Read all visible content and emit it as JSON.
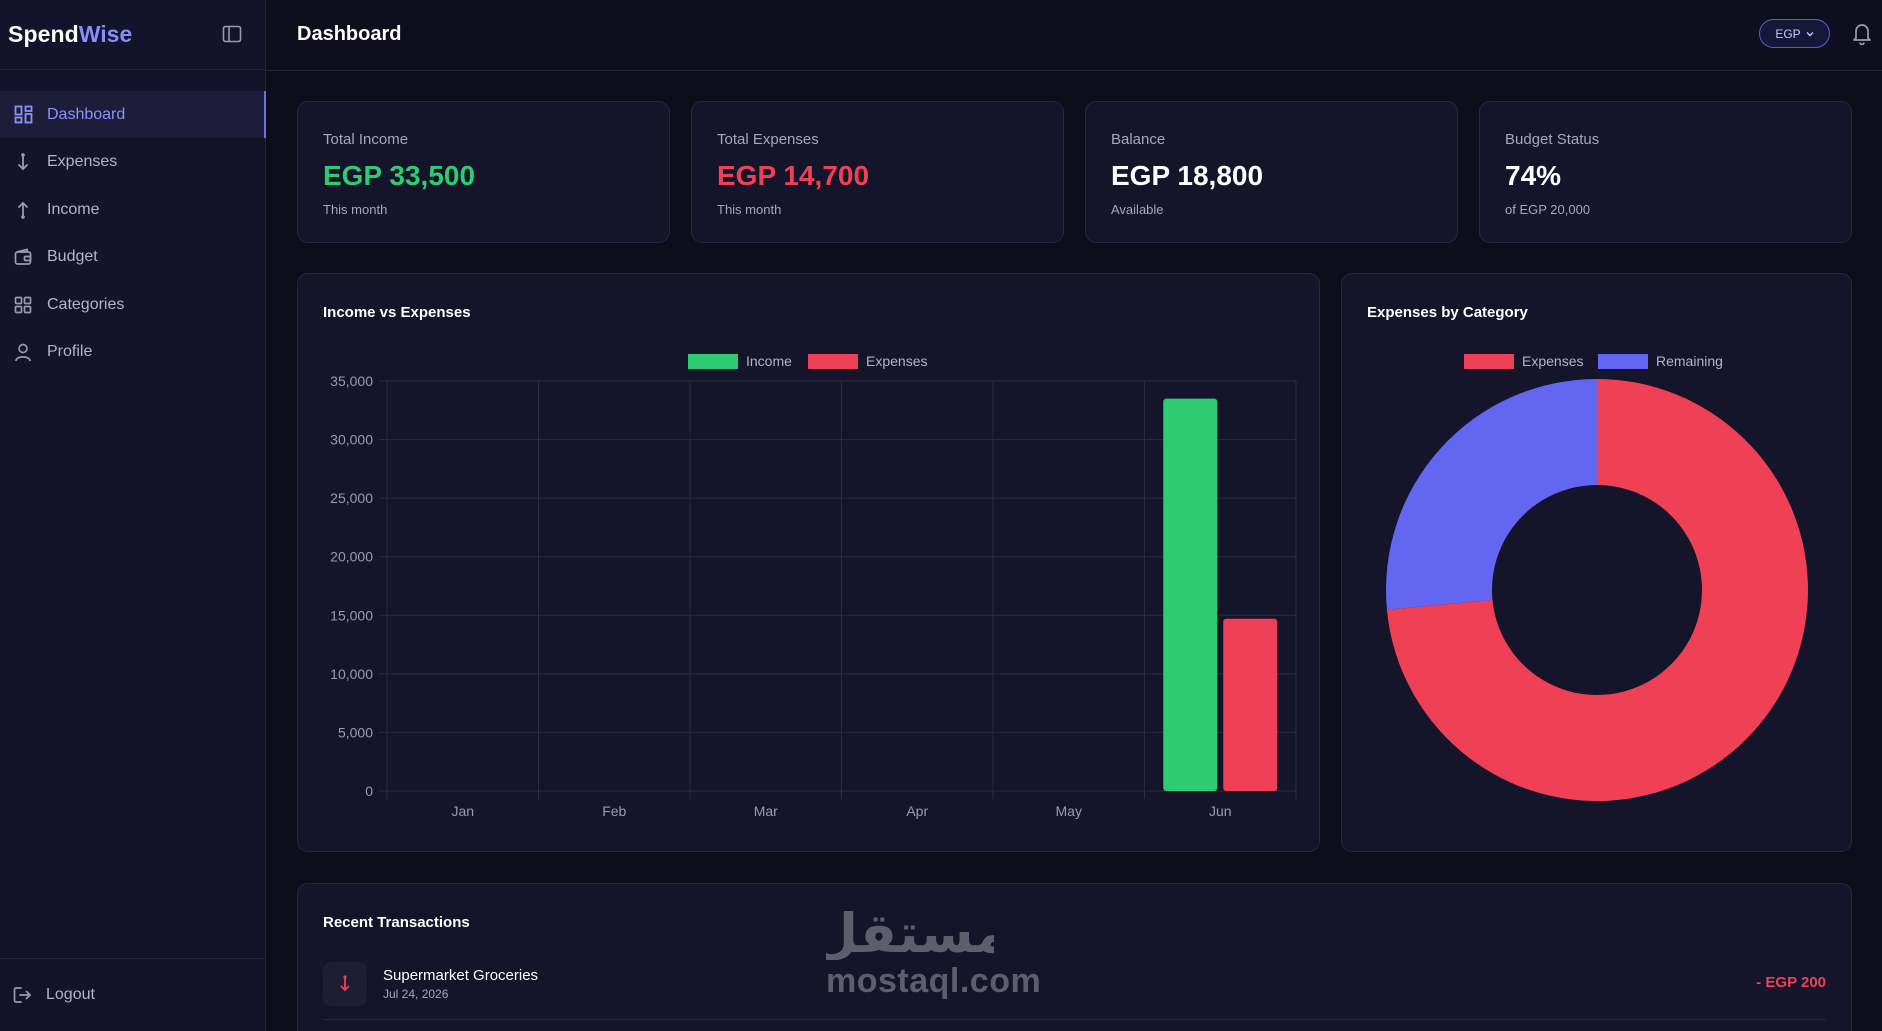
{
  "app": {
    "brand_primary": "Spend",
    "brand_accent": "Wise",
    "accent_color": "#6b6cf0"
  },
  "sidebar": {
    "items": [
      {
        "label": "Dashboard",
        "icon": "dashboard-icon",
        "active": true
      },
      {
        "label": "Expenses",
        "icon": "arrow-down-icon",
        "active": false
      },
      {
        "label": "Income",
        "icon": "arrow-up-icon",
        "active": false
      },
      {
        "label": "Budget",
        "icon": "wallet-icon",
        "active": false
      },
      {
        "label": "Categories",
        "icon": "grid-icon",
        "active": false
      },
      {
        "label": "Profile",
        "icon": "user-icon",
        "active": false
      }
    ],
    "logout_label": "Logout"
  },
  "header": {
    "title": "Dashboard",
    "currency": "EGP"
  },
  "stats": [
    {
      "label": "Total Income",
      "value": "EGP 33,500",
      "sub": "This month",
      "color": "#2ecc71"
    },
    {
      "label": "Total Expenses",
      "value": "EGP 14,700",
      "sub": "This month",
      "color": "#ef4056"
    },
    {
      "label": "Balance",
      "value": "EGP 18,800",
      "sub": "Available",
      "color": "#ffffff"
    },
    {
      "label": "Budget Status",
      "value": "74%",
      "sub": "of EGP 20,000",
      "color": "#ffffff"
    }
  ],
  "income_chart": {
    "title": "Income vs Expenses"
  },
  "category_chart": {
    "title": "Expenses by Category"
  },
  "chart_data": [
    {
      "type": "bar",
      "title": "Income vs Expenses",
      "categories": [
        "Jan",
        "Feb",
        "Mar",
        "Apr",
        "May",
        "Jun"
      ],
      "series": [
        {
          "name": "Income",
          "color": "#2ecc71",
          "values": [
            0,
            0,
            0,
            0,
            0,
            33500
          ]
        },
        {
          "name": "Expenses",
          "color": "#ef4056",
          "values": [
            0,
            0,
            0,
            0,
            0,
            14700
          ]
        }
      ],
      "ylim": [
        0,
        35000
      ],
      "yticks": [
        "0",
        "5,000",
        "10,000",
        "15,000",
        "20,000",
        "25,000",
        "30,000",
        "35,000"
      ],
      "legend": "top",
      "grid": true
    },
    {
      "type": "pie",
      "title": "Expenses by Category",
      "donut": true,
      "slices": [
        {
          "name": "Expenses",
          "color": "#ef4056",
          "value": 14700
        },
        {
          "name": "Remaining",
          "color": "#6366f1",
          "value": 5300
        }
      ],
      "legend": "top"
    }
  ],
  "transactions": {
    "title": "Recent Transactions",
    "items": [
      {
        "name": "Supermarket Groceries",
        "date": "Jul 24, 2026",
        "amount": "- EGP 200",
        "icon": "arrow-down-icon"
      }
    ]
  },
  "watermark": {
    "arabic": "مستقل",
    "latin": "mostaql.com"
  }
}
